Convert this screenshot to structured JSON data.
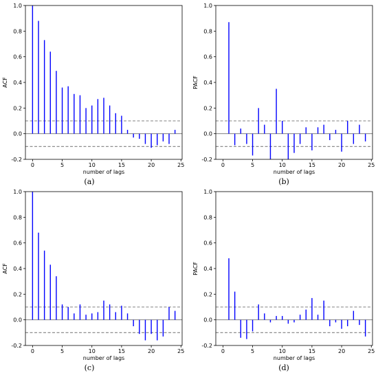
{
  "chart_data": [
    {
      "type": "bar",
      "panel_label": "(a)",
      "ylabel": "ACF",
      "xlabel": "number of lags",
      "xlim": [
        -1.2,
        25.2
      ],
      "ylim": [
        -0.2,
        1.0
      ],
      "x_ticks": [
        0,
        5,
        10,
        15,
        20,
        25
      ],
      "y_ticks": [
        "1.0",
        "0.8",
        "0.6",
        "0.4",
        "0.2",
        "0.0",
        "-0.2"
      ],
      "confidence_band": 0.1,
      "lags": [
        0,
        1,
        2,
        3,
        4,
        5,
        6,
        7,
        8,
        9,
        10,
        11,
        12,
        13,
        14,
        15,
        16,
        17,
        18,
        19,
        20,
        21,
        22,
        23,
        24
      ],
      "values": [
        1.0,
        0.88,
        0.73,
        0.64,
        0.49,
        0.36,
        0.37,
        0.31,
        0.3,
        0.2,
        0.22,
        0.27,
        0.28,
        0.22,
        0.16,
        0.14,
        0.03,
        -0.03,
        -0.04,
        -0.08,
        -0.11,
        -0.09,
        -0.06,
        -0.08,
        0.03
      ],
      "color": "#0000ff"
    },
    {
      "type": "bar",
      "panel_label": "(b)",
      "ylabel": "PACF",
      "xlabel": "number of lags",
      "xlim": [
        -1.2,
        25.2
      ],
      "ylim": [
        -0.2,
        1.0
      ],
      "x_ticks": [
        0,
        5,
        10,
        15,
        20,
        25
      ],
      "y_ticks": [
        "1.0",
        "0.8",
        "0.6",
        "0.4",
        "0.2",
        "0.0",
        "-0.2"
      ],
      "confidence_band": 0.1,
      "lags": [
        1,
        2,
        3,
        4,
        5,
        6,
        7,
        8,
        9,
        10,
        11,
        12,
        13,
        14,
        15,
        16,
        17,
        18,
        19,
        20,
        21,
        22,
        23,
        24
      ],
      "values": [
        0.87,
        -0.09,
        0.04,
        -0.08,
        -0.17,
        0.2,
        0.07,
        -0.2,
        0.35,
        0.1,
        -0.2,
        -0.15,
        -0.08,
        0.05,
        -0.13,
        0.05,
        0.07,
        -0.05,
        0.03,
        -0.14,
        0.1,
        -0.08,
        0.07,
        -0.06
      ],
      "color": "#0000ff"
    },
    {
      "type": "bar",
      "panel_label": "(c)",
      "ylabel": "ACF",
      "xlabel": "number of lags",
      "xlim": [
        -1.2,
        25.2
      ],
      "ylim": [
        -0.2,
        1.0
      ],
      "x_ticks": [
        0,
        5,
        10,
        15,
        20,
        25
      ],
      "y_ticks": [
        "1.0",
        "0.8",
        "0.6",
        "0.4",
        "0.2",
        "0.0",
        "-0.2"
      ],
      "confidence_band": 0.1,
      "lags": [
        0,
        1,
        2,
        3,
        4,
        5,
        6,
        7,
        8,
        9,
        10,
        11,
        12,
        13,
        14,
        15,
        16,
        17,
        18,
        19,
        20,
        21,
        22,
        23,
        24
      ],
      "values": [
        1.0,
        0.68,
        0.54,
        0.43,
        0.34,
        0.12,
        0.1,
        0.05,
        0.12,
        0.04,
        0.05,
        0.06,
        0.15,
        0.12,
        0.06,
        0.11,
        0.05,
        -0.05,
        -0.11,
        -0.16,
        -0.11,
        -0.16,
        -0.13,
        0.1,
        0.07
      ],
      "color": "#0000ff"
    },
    {
      "type": "bar",
      "panel_label": "(d)",
      "ylabel": "PACF",
      "xlabel": "number of lags",
      "xlim": [
        -1.2,
        25.2
      ],
      "ylim": [
        -0.2,
        1.0
      ],
      "x_ticks": [
        0,
        5,
        10,
        15,
        20,
        25
      ],
      "y_ticks": [
        "1.0",
        "0.8",
        "0.6",
        "0.4",
        "0.2",
        "0.0",
        "-0.2"
      ],
      "confidence_band": 0.1,
      "lags": [
        1,
        2,
        3,
        4,
        5,
        6,
        7,
        8,
        9,
        10,
        11,
        12,
        13,
        14,
        15,
        16,
        17,
        18,
        19,
        20,
        21,
        22,
        23,
        24
      ],
      "values": [
        0.48,
        0.22,
        -0.14,
        -0.15,
        -0.09,
        0.12,
        0.05,
        -0.02,
        0.03,
        0.03,
        -0.03,
        -0.02,
        0.04,
        0.08,
        0.17,
        0.04,
        0.15,
        -0.05,
        -0.02,
        -0.07,
        -0.05,
        0.07,
        -0.04,
        -0.13
      ],
      "color": "#0000ff"
    }
  ]
}
